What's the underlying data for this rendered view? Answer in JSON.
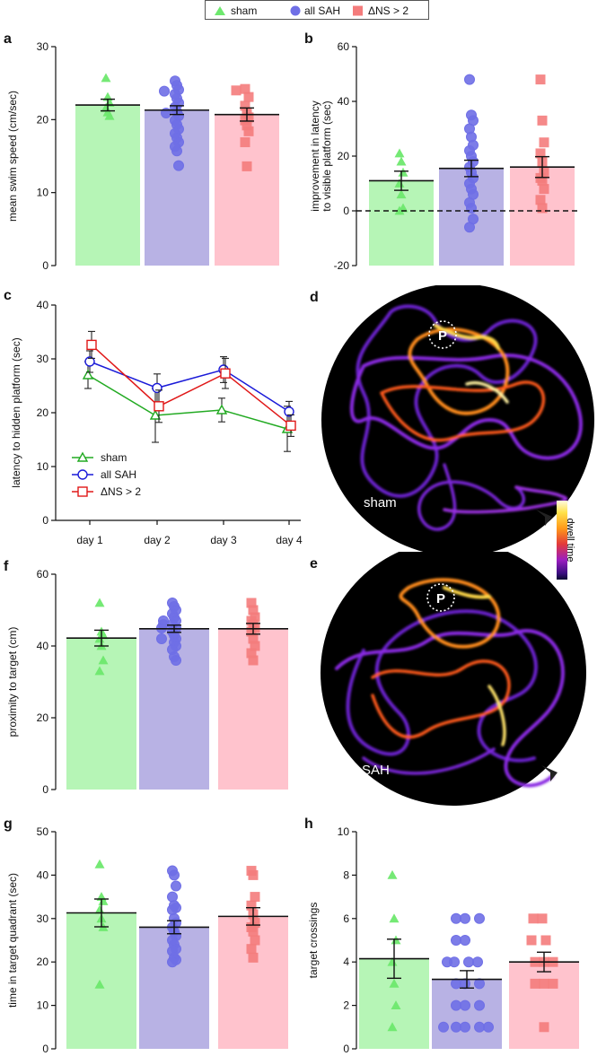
{
  "legend": {
    "items": [
      {
        "label": "sham",
        "color": "#6ee86e",
        "shape": "triangle"
      },
      {
        "label": "all SAH",
        "color": "#6f6fe6",
        "shape": "circle"
      },
      {
        "label": "ΔNS > 2",
        "color": "#f47c7c",
        "shape": "square"
      }
    ]
  },
  "colors": {
    "sham_bar": "#b6f5b6",
    "sah_bar": "#b8b2e4",
    "ns_bar": "#ffc3cd",
    "sham_mark": "#6ee86e",
    "sah_mark": "#6f6fe6",
    "ns_mark": "#f47c7c",
    "sham_line": "#22aa22",
    "sah_line": "#1a1ad8",
    "ns_line": "#e01818"
  },
  "heatmap_panels": {
    "d": {
      "letter": "d",
      "label": "sham",
      "platform_label": "P"
    },
    "e": {
      "letter": "e",
      "label": "SAH",
      "platform_label": "P"
    },
    "colorbar_label": "dwell time"
  },
  "chart_data": [
    {
      "id": "a",
      "type": "bar",
      "title": "a",
      "xlabel": "",
      "ylabel": "mean swim speed (cm/sec)",
      "ylim": [
        0,
        30
      ],
      "yticks": [
        0,
        10,
        20,
        30
      ],
      "categories": [
        "sham",
        "all SAH",
        "ΔNS > 2"
      ],
      "means": [
        22.0,
        21.3,
        20.7
      ],
      "sem": [
        0.8,
        0.6,
        0.9
      ],
      "points": [
        [
          25.7,
          23.1,
          22.3,
          21.6,
          21.0,
          20.5
        ],
        [
          25.3,
          24.7,
          24.1,
          23.5,
          22.9,
          22.3,
          21.7,
          21.1,
          20.5,
          19.9,
          19.3,
          18.7,
          18.1,
          17.5,
          16.9,
          16.3,
          15.7,
          13.7,
          23.9,
          20.9
        ],
        [
          24.2,
          24.0,
          23.1,
          21.9,
          20.9,
          20.3,
          19.9,
          19.2,
          18.4,
          16.9,
          13.6
        ]
      ]
    },
    {
      "id": "b",
      "type": "bar",
      "title": "b",
      "xlabel": "",
      "ylabel": "improvement in latency to visible platform (sec)",
      "ylabel_lines": [
        "improvement in latency",
        "to visible platform (sec)"
      ],
      "ylim": [
        -20,
        60
      ],
      "yticks": [
        -20,
        0,
        20,
        40,
        60
      ],
      "zero_line": "dashed",
      "categories": [
        "sham",
        "all SAH",
        "ΔNS > 2"
      ],
      "means": [
        11.0,
        15.5,
        16.0
      ],
      "sem": [
        3.5,
        3.0,
        3.8
      ],
      "points": [
        [
          21.0,
          18.0,
          14.0,
          10.0,
          6.0,
          1.0,
          0.0
        ],
        [
          48.0,
          35.0,
          33.0,
          30.0,
          27.0,
          24.0,
          22.0,
          20.0,
          18.0,
          16.0,
          14.0,
          12.0,
          10.0,
          8.0,
          6.0,
          3.0,
          1.0,
          -3.0,
          -6.0
        ],
        [
          48.0,
          33.0,
          25.0,
          21.0,
          18.0,
          14.0,
          12.0,
          11.0,
          8.0,
          4.0,
          1.0
        ]
      ]
    },
    {
      "id": "c",
      "type": "line",
      "title": "c",
      "xlabel": "",
      "ylabel": "latency to hidden platform (sec)",
      "ylim": [
        0,
        40
      ],
      "yticks": [
        0,
        10,
        20,
        30,
        40
      ],
      "categories": [
        "day 1",
        "day 2",
        "day 3",
        "day 4"
      ],
      "series": [
        {
          "name": "sham",
          "values": [
            27.0,
            19.5,
            20.5,
            17.0
          ],
          "err": [
            2.5,
            5.0,
            2.2,
            4.2
          ]
        },
        {
          "name": "all SAH",
          "values": [
            29.5,
            24.6,
            28.0,
            20.2
          ],
          "err": [
            2.0,
            2.6,
            2.4,
            1.9
          ]
        },
        {
          "name": "ΔNS > 2",
          "values": [
            32.6,
            21.2,
            27.3,
            17.6
          ],
          "err": [
            2.5,
            3.0,
            2.8,
            2.0
          ]
        }
      ]
    },
    {
      "id": "f",
      "type": "bar",
      "title": "f",
      "xlabel": "",
      "ylabel": "proximity to target (cm)",
      "ylim": [
        0,
        60
      ],
      "yticks": [
        0,
        20,
        40,
        60
      ],
      "categories": [
        "sham",
        "all SAH",
        "ΔNS > 2"
      ],
      "means": [
        42.2,
        44.8,
        44.8
      ],
      "sem": [
        2.2,
        1.0,
        1.5
      ],
      "points": [
        [
          52.0,
          44.0,
          43.0,
          42.0,
          40.0,
          36.0,
          33.0
        ],
        [
          52.0,
          51.0,
          50.0,
          49.0,
          48.0,
          47.0,
          46.0,
          46.0,
          45.0,
          44.0,
          43.0,
          42.0,
          42.0,
          41.0,
          40.0,
          39.0,
          37.0,
          36.0,
          45.0,
          47.0
        ],
        [
          52.0,
          50.0,
          48.0,
          47.0,
          46.0,
          45.0,
          44.0,
          42.0,
          40.0,
          38.0,
          36.0
        ]
      ]
    },
    {
      "id": "g",
      "type": "bar",
      "title": "g",
      "xlabel": "",
      "ylabel": "time in target quadrant (sec)",
      "ylim": [
        0,
        50
      ],
      "yticks": [
        0,
        10,
        20,
        30,
        40,
        50
      ],
      "categories": [
        "sham",
        "all SAH",
        "ΔNS > 2"
      ],
      "means": [
        31.3,
        28.0,
        30.5
      ],
      "sem": [
        3.2,
        1.5,
        2.0
      ],
      "points": [
        [
          42.5,
          35.0,
          34.0,
          32.0,
          30.0,
          28.0,
          14.8
        ],
        [
          41.0,
          40.0,
          37.5,
          35.0,
          33.0,
          32.5,
          32.0,
          30.0,
          29.0,
          28.0,
          27.0,
          26.0,
          25.0,
          24.0,
          23.0,
          22.5,
          21.0,
          20.5,
          20.0
        ],
        [
          41.0,
          40.0,
          35.0,
          33.0,
          31.0,
          29.0,
          28.0,
          27.0,
          25.0,
          23.0,
          21.0
        ]
      ]
    },
    {
      "id": "h",
      "type": "bar",
      "title": "h",
      "xlabel": "",
      "ylabel": "target crossings",
      "ylim": [
        0,
        10
      ],
      "yticks": [
        0,
        2,
        4,
        6,
        8,
        10
      ],
      "categories": [
        "sham",
        "all SAH",
        "ΔNS > 2"
      ],
      "means": [
        4.15,
        3.2,
        4.0
      ],
      "sem": [
        0.9,
        0.4,
        0.45
      ],
      "points": [
        [
          8,
          6,
          5,
          4,
          3,
          2,
          1
        ],
        [
          6,
          6,
          6,
          5,
          5,
          4,
          4,
          4,
          4,
          3,
          3,
          3,
          2,
          2,
          2,
          1,
          1,
          1,
          1,
          1
        ],
        [
          6,
          6,
          5,
          5,
          4,
          4,
          4,
          3,
          3,
          3,
          1
        ]
      ]
    }
  ]
}
